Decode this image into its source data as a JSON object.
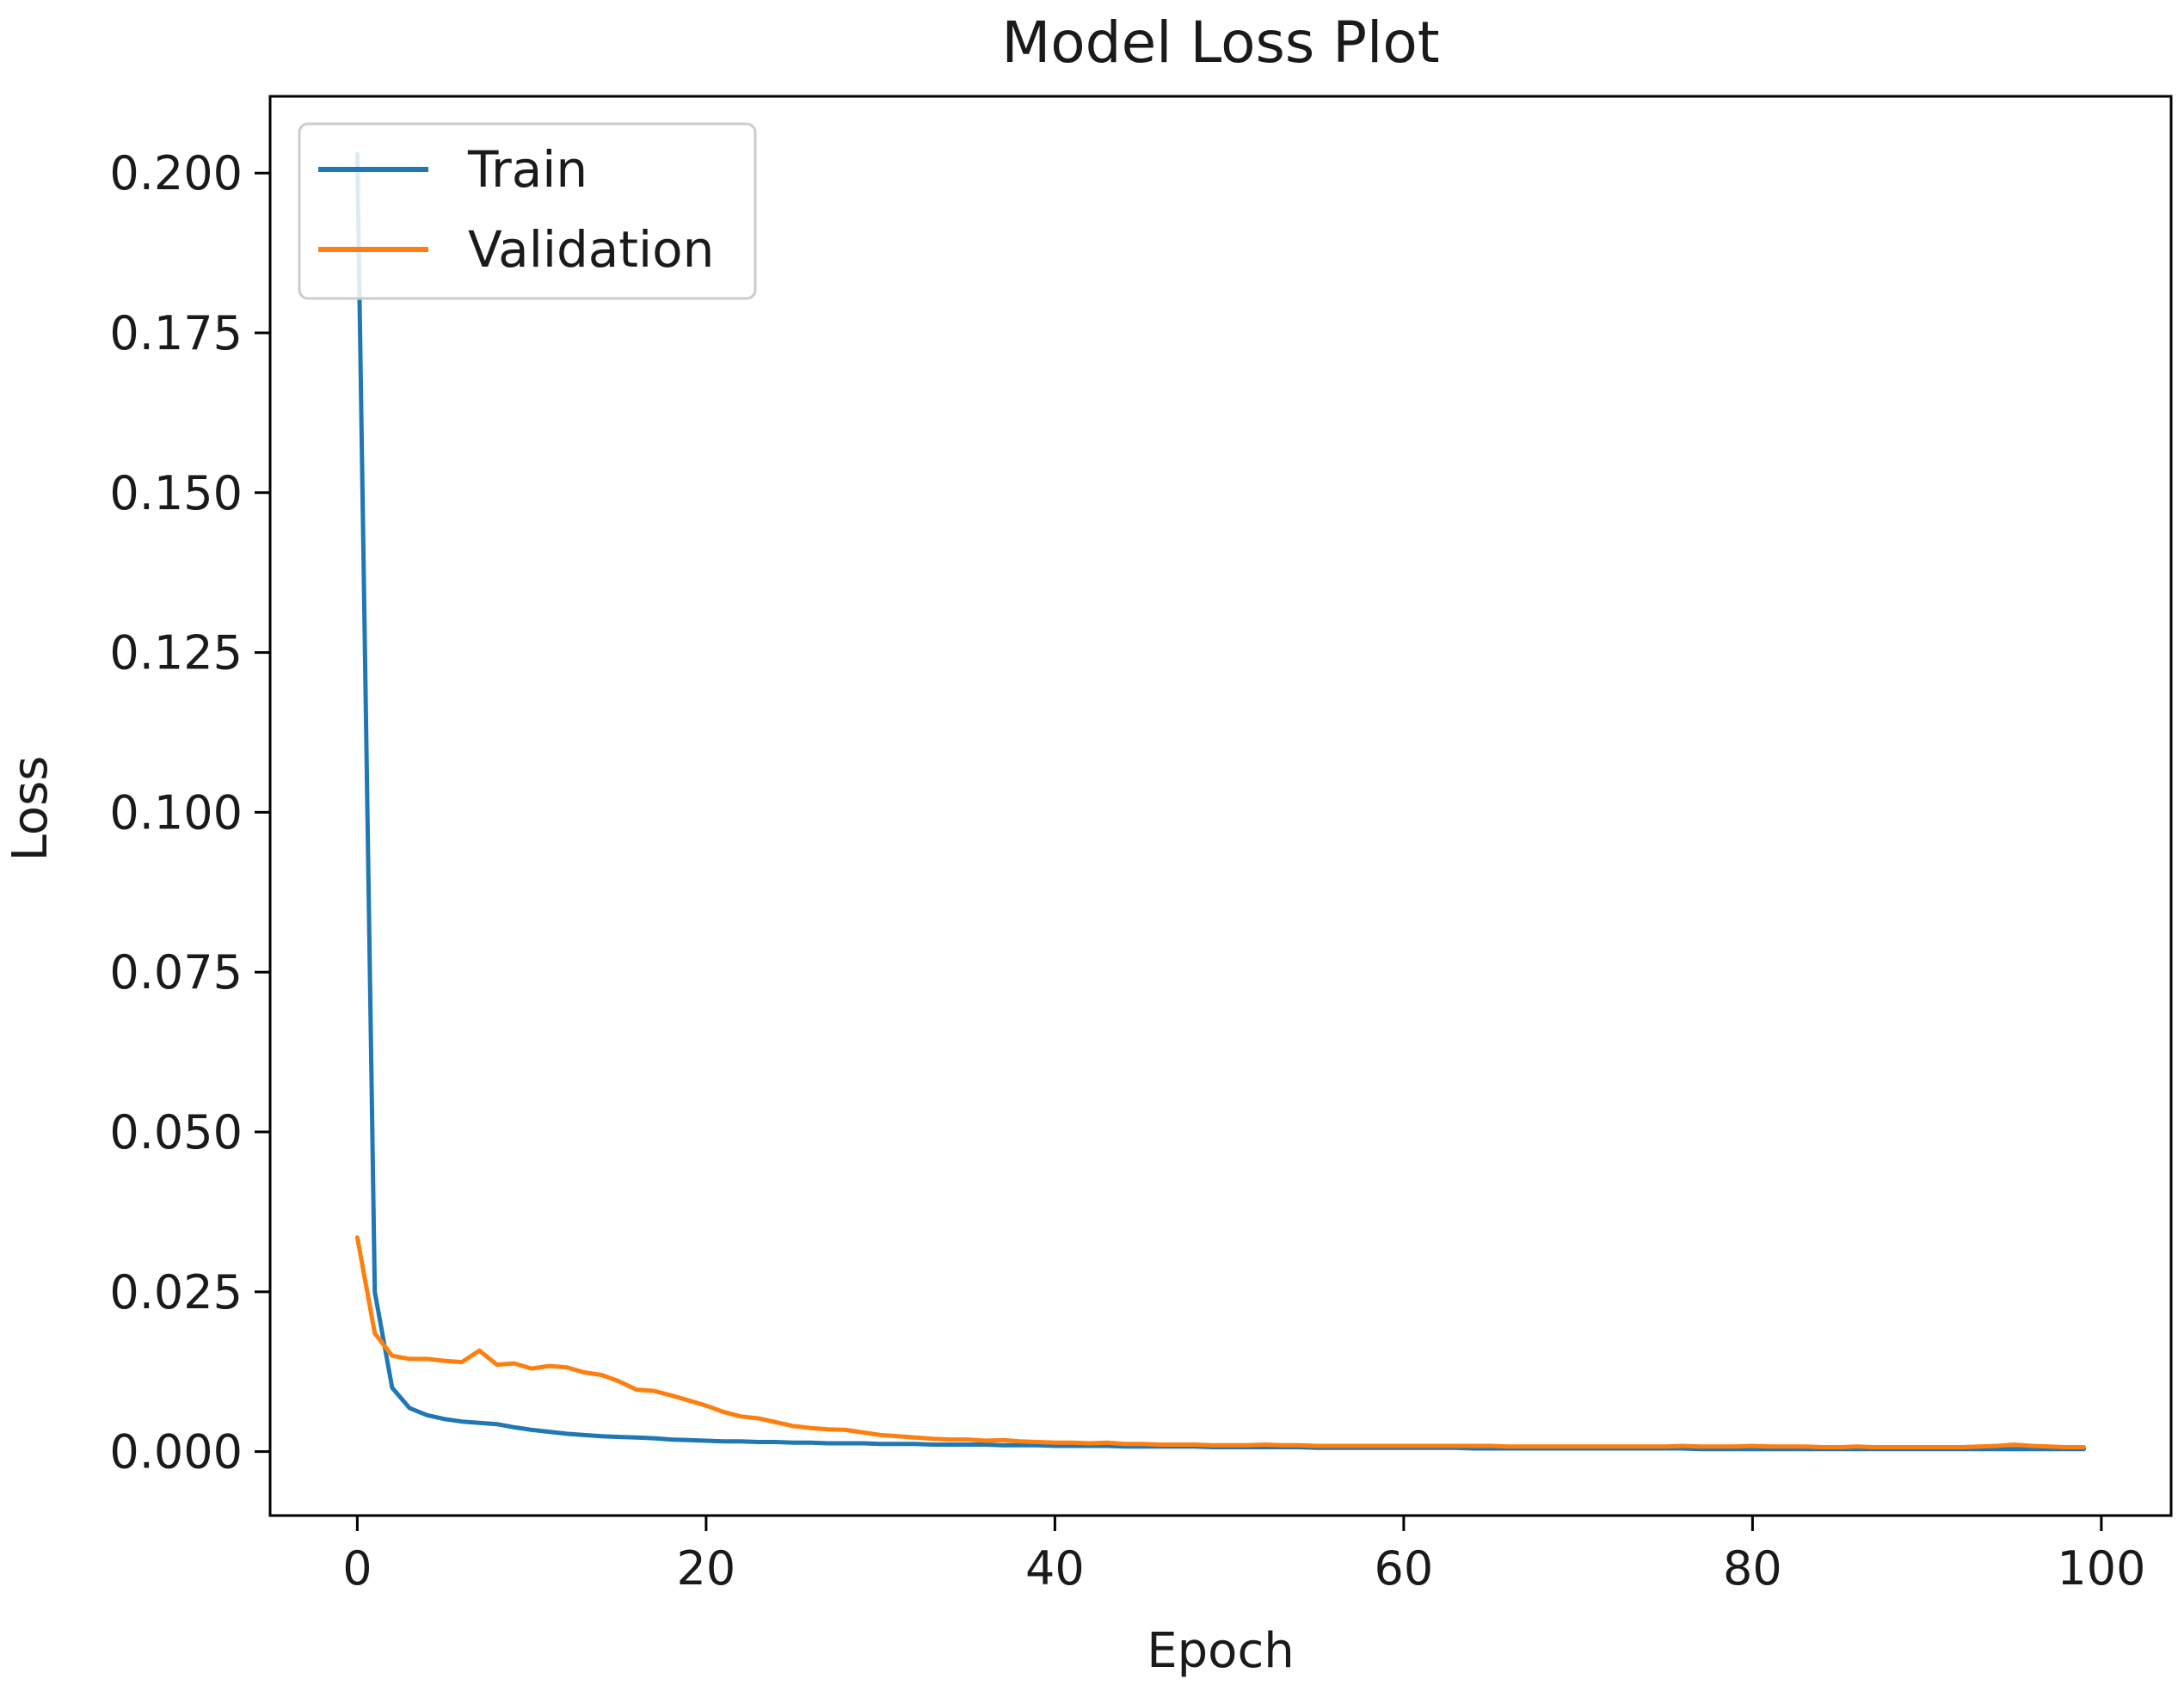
{
  "chart_data": {
    "type": "line",
    "title": "Model Loss Plot",
    "xlabel": "Epoch",
    "ylabel": "Loss",
    "xlim": [
      -5,
      104
    ],
    "ylim": [
      -0.01,
      0.212
    ],
    "xticks": [
      0,
      20,
      40,
      60,
      80,
      100
    ],
    "xtick_labels": [
      "0",
      "20",
      "40",
      "60",
      "80",
      "100"
    ],
    "yticks": [
      0.0,
      0.025,
      0.05,
      0.075,
      0.1,
      0.125,
      0.15,
      0.175,
      0.2
    ],
    "ytick_labels": [
      "0.000",
      "0.025",
      "0.050",
      "0.075",
      "0.100",
      "0.125",
      "0.150",
      "0.175",
      "0.200"
    ],
    "grid": false,
    "legend_position": "top-left",
    "series": [
      {
        "name": "Train",
        "color": "#1f77b4",
        "x": [
          0,
          1,
          2,
          3,
          4,
          5,
          6,
          7,
          8,
          9,
          10,
          11,
          12,
          13,
          14,
          15,
          16,
          17,
          18,
          19,
          20,
          21,
          22,
          23,
          24,
          25,
          26,
          27,
          28,
          29,
          30,
          31,
          32,
          33,
          34,
          35,
          36,
          37,
          38,
          39,
          40,
          41,
          42,
          43,
          44,
          45,
          46,
          47,
          48,
          49,
          50,
          51,
          52,
          53,
          54,
          55,
          56,
          57,
          58,
          59,
          60,
          61,
          62,
          63,
          64,
          65,
          66,
          67,
          68,
          69,
          70,
          71,
          72,
          73,
          74,
          75,
          76,
          77,
          78,
          79,
          80,
          81,
          82,
          83,
          84,
          85,
          86,
          87,
          88,
          89,
          90,
          91,
          92,
          93,
          94,
          95,
          96,
          97,
          98,
          99
        ],
        "values": [
          0.203,
          0.025,
          0.01,
          0.0068,
          0.0057,
          0.0051,
          0.0047,
          0.0045,
          0.0043,
          0.0038,
          0.0034,
          0.0031,
          0.0028,
          0.0026,
          0.0024,
          0.0023,
          0.0022,
          0.0021,
          0.0019,
          0.0018,
          0.0017,
          0.0016,
          0.0016,
          0.0015,
          0.0015,
          0.0014,
          0.0014,
          0.0013,
          0.0013,
          0.0013,
          0.0012,
          0.0012,
          0.0012,
          0.0011,
          0.0011,
          0.0011,
          0.0011,
          0.001,
          0.001,
          0.001,
          0.0009,
          0.0009,
          0.0009,
          0.0009,
          0.0008,
          0.0008,
          0.0008,
          0.0008,
          0.0008,
          0.0007,
          0.0007,
          0.0007,
          0.0007,
          0.0007,
          0.0007,
          0.0006,
          0.0006,
          0.0006,
          0.0006,
          0.0006,
          0.0006,
          0.0006,
          0.0006,
          0.0006,
          0.0005,
          0.0005,
          0.0005,
          0.0005,
          0.0005,
          0.0005,
          0.0005,
          0.0005,
          0.0005,
          0.0005,
          0.0005,
          0.0005,
          0.0005,
          0.0004,
          0.0004,
          0.0004,
          0.0004,
          0.0004,
          0.0004,
          0.0004,
          0.0004,
          0.0004,
          0.0004,
          0.0004,
          0.0004,
          0.0004,
          0.0004,
          0.0004,
          0.0004,
          0.0004,
          0.0004,
          0.0004,
          0.0004,
          0.0004,
          0.0004,
          0.0004
        ]
      },
      {
        "name": "Validation",
        "color": "#ff7f0e",
        "x": [
          0,
          1,
          2,
          3,
          4,
          5,
          6,
          7,
          8,
          9,
          10,
          11,
          12,
          13,
          14,
          15,
          16,
          17,
          18,
          19,
          20,
          21,
          22,
          23,
          24,
          25,
          26,
          27,
          28,
          29,
          30,
          31,
          32,
          33,
          34,
          35,
          36,
          37,
          38,
          39,
          40,
          41,
          42,
          43,
          44,
          45,
          46,
          47,
          48,
          49,
          50,
          51,
          52,
          53,
          54,
          55,
          56,
          57,
          58,
          59,
          60,
          61,
          62,
          63,
          64,
          65,
          66,
          67,
          68,
          69,
          70,
          71,
          72,
          73,
          74,
          75,
          76,
          77,
          78,
          79,
          80,
          81,
          82,
          83,
          84,
          85,
          86,
          87,
          88,
          89,
          90,
          91,
          92,
          93,
          94,
          95,
          96,
          97,
          98,
          99
        ],
        "values": [
          0.0335,
          0.0185,
          0.015,
          0.0145,
          0.0145,
          0.0142,
          0.014,
          0.0158,
          0.0136,
          0.0138,
          0.013,
          0.0134,
          0.0132,
          0.0124,
          0.012,
          0.011,
          0.0097,
          0.0095,
          0.0088,
          0.008,
          0.0072,
          0.0062,
          0.0055,
          0.0052,
          0.0046,
          0.004,
          0.0037,
          0.0035,
          0.0034,
          0.003,
          0.0026,
          0.0024,
          0.0022,
          0.002,
          0.0019,
          0.0019,
          0.0017,
          0.0018,
          0.0016,
          0.0015,
          0.0014,
          0.0014,
          0.0013,
          0.0014,
          0.0012,
          0.0012,
          0.0011,
          0.0011,
          0.0011,
          0.001,
          0.001,
          0.001,
          0.0011,
          0.001,
          0.001,
          0.0009,
          0.0009,
          0.0009,
          0.0009,
          0.0009,
          0.0009,
          0.0009,
          0.0009,
          0.0009,
          0.0009,
          0.0009,
          0.0008,
          0.0008,
          0.0008,
          0.0008,
          0.0008,
          0.0008,
          0.0008,
          0.0008,
          0.0008,
          0.0008,
          0.0009,
          0.0008,
          0.0008,
          0.0008,
          0.0009,
          0.0008,
          0.0008,
          0.0008,
          0.0007,
          0.0007,
          0.0008,
          0.0007,
          0.0007,
          0.0007,
          0.0007,
          0.0007,
          0.0007,
          0.0008,
          0.0009,
          0.0011,
          0.0009,
          0.0008,
          0.0007,
          0.0007
        ]
      }
    ]
  }
}
